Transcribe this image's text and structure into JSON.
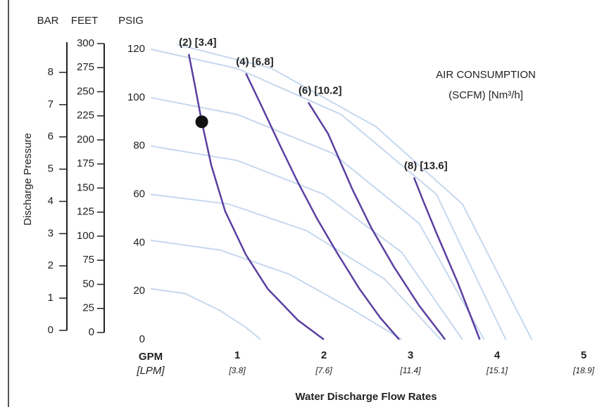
{
  "chart_data": {
    "type": "line",
    "title": "Water Discharge Flow Rates",
    "x_unit": "GPM",
    "x_unit_metric": "[LPM]",
    "y_label": "Discharge Pressure",
    "y_unit": "PSIG",
    "feet_unit": "FEET",
    "bar_unit": "BAR",
    "legend_title": "AIR CONSUMPTION",
    "legend_subtitle": "(SCFM) [Nm³/h]",
    "xlim": [
      0,
      5
    ],
    "xticks": [
      1,
      2,
      3,
      4,
      5
    ],
    "xtick_metric_labels": [
      "[3.8]",
      "[7.6]",
      "[11.4]",
      "[15.1]",
      "[18.9]"
    ],
    "ylim": [
      0,
      120
    ],
    "yticks": [
      0,
      20,
      40,
      60,
      80,
      100,
      120
    ],
    "feet_lim": [
      0,
      300
    ],
    "feet_ticks": [
      0,
      25,
      50,
      75,
      100,
      125,
      150,
      175,
      200,
      225,
      250,
      275,
      300
    ],
    "bar_lim": [
      0,
      8
    ],
    "bar_ticks": [
      0,
      1,
      2,
      3,
      4,
      5,
      6,
      7,
      8
    ],
    "series": [
      {
        "name": "(2) [3.4]",
        "color": "#5b3fa0",
        "x": [
          0.44,
          0.5,
          0.59,
          0.7,
          0.86,
          1.1,
          1.35,
          1.7,
          2.0
        ],
        "values": [
          118,
          107,
          90,
          72,
          53,
          35,
          21,
          8,
          0
        ]
      },
      {
        "name": "(4) [6.8]",
        "color": "#5b3fa0",
        "x": [
          1.1,
          1.3,
          1.51,
          1.7,
          1.92,
          2.15,
          2.41,
          2.65,
          2.87
        ],
        "values": [
          110,
          95,
          79,
          65,
          50,
          36,
          21,
          9,
          0
        ]
      },
      {
        "name": "(6) [10.2]",
        "color": "#5b3fa0",
        "x": [
          1.82,
          2.05,
          2.33,
          2.55,
          2.81,
          3.1,
          3.4
        ],
        "values": [
          98,
          85,
          62,
          46,
          30,
          14,
          0
        ]
      },
      {
        "name": "(8) [13.6]",
        "color": "#5b3fa0",
        "x": [
          3.04,
          3.15,
          3.3,
          3.54,
          3.8
        ],
        "values": [
          67,
          57,
          44,
          24,
          0
        ]
      }
    ],
    "background_curves": {
      "color": "#c6d8ee",
      "curves": [
        {
          "x": [
            0,
            0.4,
            0.8,
            1.1,
            1.27
          ],
          "values": [
            21,
            19,
            12,
            5,
            0
          ]
        },
        {
          "x": [
            0,
            0.8,
            1.6,
            2.3,
            2.9
          ],
          "values": [
            41,
            37,
            27,
            13,
            0
          ]
        },
        {
          "x": [
            0,
            0.9,
            1.8,
            2.7,
            3.35
          ],
          "values": [
            60,
            56,
            45,
            25,
            0
          ]
        },
        {
          "x": [
            0,
            1.0,
            2.0,
            2.9,
            3.6
          ],
          "values": [
            80,
            74,
            60,
            36,
            0
          ]
        },
        {
          "x": [
            0,
            1.0,
            2.1,
            3.1,
            3.85
          ],
          "values": [
            100,
            93,
            77,
            48,
            0
          ]
        },
        {
          "x": [
            0,
            1.0,
            2.2,
            3.3,
            4.1
          ],
          "values": [
            120,
            112,
            93,
            60,
            0
          ]
        },
        {
          "x": [
            0.3,
            1.4,
            2.6,
            3.6,
            4.4
          ],
          "values": [
            122,
            112,
            88,
            56,
            0
          ]
        }
      ]
    },
    "marker": {
      "x": 0.59,
      "y": 90,
      "color": "#111"
    }
  }
}
